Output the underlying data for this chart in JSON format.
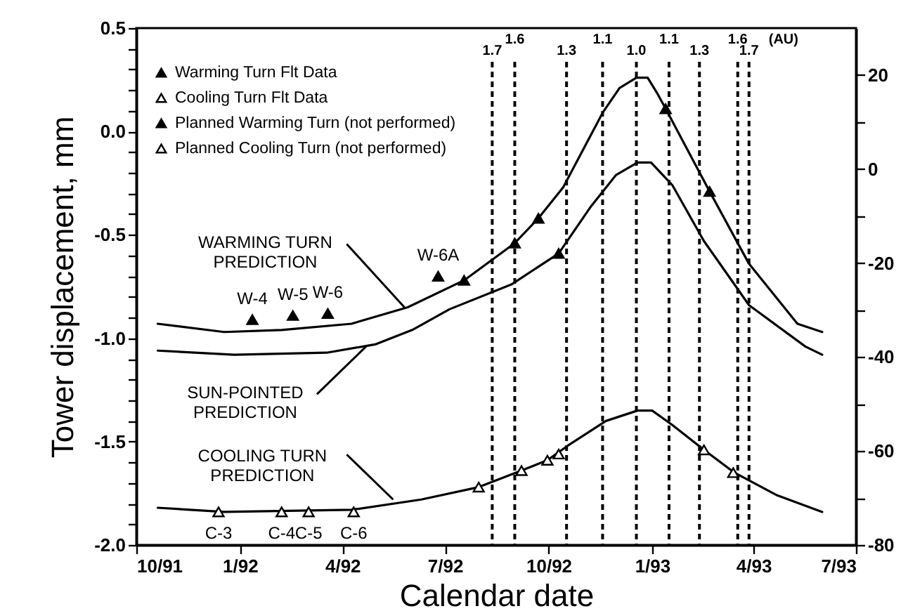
{
  "chart_data": {
    "type": "line",
    "xlabel": "Calendar date",
    "ylabel": "Tower displacement, mm",
    "xlim": [
      "1991-10-01",
      "1993-07-01"
    ],
    "xticks": [
      {
        "value": "1991-10-01",
        "label": "10/91"
      },
      {
        "value": "1992-01-01",
        "label": "1/92"
      },
      {
        "value": "1992-04-01",
        "label": "4/92"
      },
      {
        "value": "1992-07-01",
        "label": "7/92"
      },
      {
        "value": "1992-10-01",
        "label": "10/92"
      },
      {
        "value": "1993-01-01",
        "label": "1/93"
      },
      {
        "value": "1993-04-01",
        "label": "4/93"
      },
      {
        "value": "1993-07-01",
        "label": "7/93"
      }
    ],
    "ylim": [
      -2.0,
      0.5
    ],
    "yticks": [
      {
        "value": -2,
        "label": "-2.0"
      },
      {
        "value": -1.9,
        "label": null
      },
      {
        "value": -1.8,
        "label": null
      },
      {
        "value": -1.7,
        "label": null
      },
      {
        "value": -1.6,
        "label": null
      },
      -1.5,
      {
        "value": -1.4,
        "label": null
      },
      {
        "value": -1.3,
        "label": null
      },
      {
        "value": -1.2,
        "label": null
      },
      {
        "value": -1.1,
        "label": null
      },
      {
        "value": -1,
        "label": "-1.0"
      },
      {
        "value": -0.9,
        "label": null
      },
      {
        "value": -0.8,
        "label": null
      },
      {
        "value": -0.7,
        "label": null
      },
      {
        "value": -0.6,
        "label": null
      },
      -0.5,
      {
        "value": -0.4,
        "label": null
      },
      {
        "value": -0.3,
        "label": null
      },
      {
        "value": -0.2,
        "label": null
      },
      {
        "value": -0.1,
        "label": null
      },
      {
        "value": 0,
        "label": "0.0"
      },
      {
        "value": 0.1,
        "label": null
      },
      {
        "value": 0.2,
        "label": null
      },
      {
        "value": 0.3,
        "label": null
      },
      {
        "value": 0.4,
        "label": null
      },
      0.5
    ],
    "y2lim": [
      -80,
      30
    ],
    "y2ticks": [
      -80,
      {
        "value": -70,
        "label": null
      },
      -60,
      {
        "value": -50,
        "label": null
      },
      -40,
      {
        "value": -30,
        "label": null
      },
      -20,
      {
        "value": -10,
        "label": null
      },
      0,
      {
        "value": 10,
        "label": null
      },
      20
    ],
    "legend": "top left",
    "series": [
      {
        "name": "Warming Turn Flt Data",
        "type": "scatter",
        "marker": "triangle",
        "color": "#000000",
        "x": [
          "1992-01-12",
          "1992-02-17",
          "1992-03-19",
          "1992-06-25",
          "1992-07-18",
          "1992-09-01",
          "1992-09-22",
          "1992-10-10"
        ],
        "values": [
          -0.91,
          -0.89,
          -0.88,
          -0.7,
          -0.72,
          -0.54,
          -0.42,
          -0.59
        ],
        "value_labels": [
          "W-4",
          "W-5",
          "W-6",
          "W-6A",
          null,
          null,
          null,
          null
        ]
      },
      {
        "name": "Cooling Turn Flt Data",
        "type": "scatter",
        "marker": "triangle",
        "color": "#ffffff",
        "x": [
          "1991-12-13",
          "1992-02-07",
          "1992-03-02",
          "1992-04-11",
          "1992-07-31",
          "1992-09-07",
          "1992-09-30",
          "1992-10-10"
        ],
        "values": [
          -1.84,
          -1.84,
          -1.84,
          -1.84,
          -1.72,
          -1.64,
          -1.59,
          -1.56
        ],
        "value_labels": [
          "C-3",
          "C-4",
          "C-5",
          "C-6",
          null,
          null,
          null,
          null
        ]
      },
      {
        "name": "Planned Warming Turn (not performed)",
        "type": "scatter",
        "marker": "triangle",
        "color": "#000000",
        "x": [
          "1993-01-13",
          "1993-02-21"
        ],
        "values": [
          0.11,
          -0.29
        ]
      },
      {
        "name": "Planned Cooling Turn (not performed)",
        "type": "scatter",
        "marker": "triangle",
        "color": "#ffffff",
        "x": [
          "1993-02-16",
          "1993-03-14"
        ],
        "values": [
          -1.54,
          -1.65
        ]
      },
      {
        "color": "#000000",
        "x": [
          "1991-10-20",
          "1991-12-18",
          "1992-02-07",
          "1992-04-09",
          "1992-05-29",
          "1992-07-18",
          "1992-09-01",
          "1992-09-22",
          "1992-10-14",
          "1992-11-18",
          "1992-12-03",
          "1992-12-18",
          "1992-12-28",
          "1993-01-06",
          "1993-01-13",
          "1993-02-21",
          "1993-03-28",
          "1993-05-10",
          "1993-06-01"
        ],
        "values": [
          -0.93,
          -0.97,
          -0.96,
          -0.93,
          -0.85,
          -0.72,
          -0.54,
          -0.42,
          -0.27,
          0.09,
          0.21,
          0.26,
          0.26,
          0.18,
          0.11,
          -0.29,
          -0.64,
          -0.93,
          -0.97
        ]
      },
      {
        "color": "#000000",
        "x": [
          "1991-10-20",
          "1991-12-27",
          "1992-03-18",
          "1992-04-30",
          "1992-06-02",
          "1992-07-05",
          "1992-08-29",
          "1992-10-10",
          "1992-11-08",
          "1992-11-30",
          "1992-12-19",
          "1992-12-31",
          "1993-01-19",
          "1993-02-16",
          "1993-03-28",
          "1993-05-17",
          "1993-06-01"
        ],
        "values": [
          -1.06,
          -1.08,
          -1.07,
          -1.03,
          -0.96,
          -0.86,
          -0.74,
          -0.59,
          -0.36,
          -0.21,
          -0.15,
          -0.15,
          -0.26,
          -0.53,
          -0.84,
          -1.04,
          -1.08
        ]
      },
      {
        "color": "#000000",
        "x": [
          "1991-10-20",
          "1991-12-18",
          "1992-04-09",
          "1992-06-10",
          "1992-07-31",
          "1992-09-07",
          "1992-09-30",
          "1992-10-18",
          "1992-11-21",
          "1992-12-19",
          "1993-01-01",
          "1993-01-19",
          "1993-02-16",
          "1993-03-15",
          "1993-04-22",
          "1993-06-01"
        ],
        "values": [
          -1.82,
          -1.84,
          -1.83,
          -1.78,
          -1.72,
          -1.64,
          -1.59,
          -1.52,
          -1.4,
          -1.35,
          -1.35,
          -1.42,
          -1.54,
          -1.65,
          -1.76,
          -1.84
        ]
      }
    ],
    "ref_lines": [
      {
        "axis": "x",
        "value": "1992-08-12",
        "label": "1.7",
        "line_style": "dashed"
      },
      {
        "axis": "x",
        "value": "1992-09-01",
        "label": "1.6",
        "line_style": "dashed"
      },
      {
        "axis": "x",
        "value": "1992-10-17",
        "label": "1.3",
        "line_style": "dashed"
      },
      {
        "axis": "x",
        "value": "1992-11-18",
        "label": "1.1",
        "line_style": "dashed"
      },
      {
        "axis": "x",
        "value": "1992-12-18",
        "label": "1.0",
        "line_style": "dashed"
      },
      {
        "axis": "x",
        "value": "1993-01-16",
        "label": "1.1",
        "line_style": "dashed"
      },
      {
        "axis": "x",
        "value": "1993-02-12",
        "label": "1.3",
        "line_style": "dashed"
      },
      {
        "axis": "x",
        "value": "1993-03-18",
        "label": "1.6",
        "line_style": "dashed"
      },
      {
        "axis": "x",
        "value": "1993-03-28",
        "label": "1.7",
        "line_style": "dashed"
      }
    ],
    "annotations": [
      {
        "text": "WARMING TURN\nPREDICTION",
        "x": "1992-05-26",
        "y": -0.85
      },
      {
        "text": "SUN-POINTED\nPREDICTION",
        "x": "1992-04-22",
        "y": -1.04
      },
      {
        "text": "COOLING TURN\nPREDICTION",
        "x": "1992-05-16",
        "y": -1.78
      },
      "(AU)"
    ]
  }
}
